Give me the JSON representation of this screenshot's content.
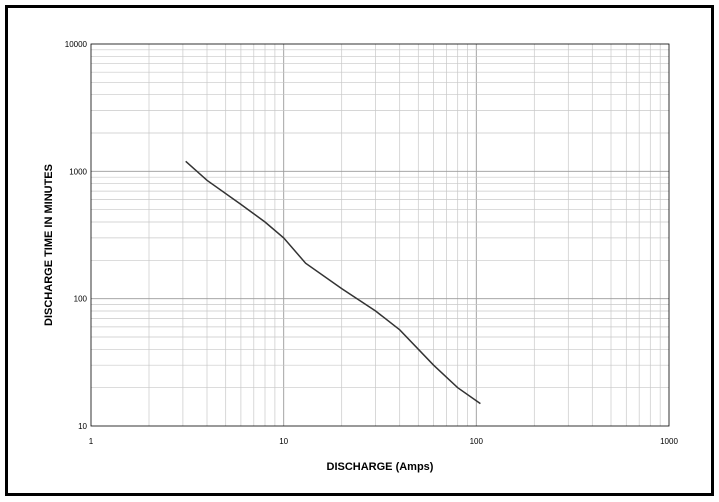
{
  "chart_data": {
    "type": "line",
    "title": "",
    "xlabel": "DISCHARGE (Amps)",
    "ylabel": "DISCHARGE TIME IN MINUTES",
    "x_scale": "log",
    "y_scale": "log",
    "xlim": [
      1,
      1000
    ],
    "ylim": [
      10,
      10000
    ],
    "grid": true,
    "legend": "none",
    "x_ticks": [
      "1",
      "10",
      "100",
      "1000"
    ],
    "y_ticks": [
      "10",
      "100",
      "1000",
      "10000"
    ],
    "series": [
      {
        "name": "",
        "x": [
          3.1,
          4,
          6,
          8,
          10,
          13,
          20,
          30,
          40,
          60,
          80,
          105
        ],
        "y": [
          1200,
          850,
          550,
          400,
          300,
          190,
          120,
          80,
          57,
          30,
          20,
          15
        ]
      }
    ],
    "colors": {
      "line": "#333333",
      "grid": "#c8c8c8",
      "axis": "#000000"
    }
  }
}
